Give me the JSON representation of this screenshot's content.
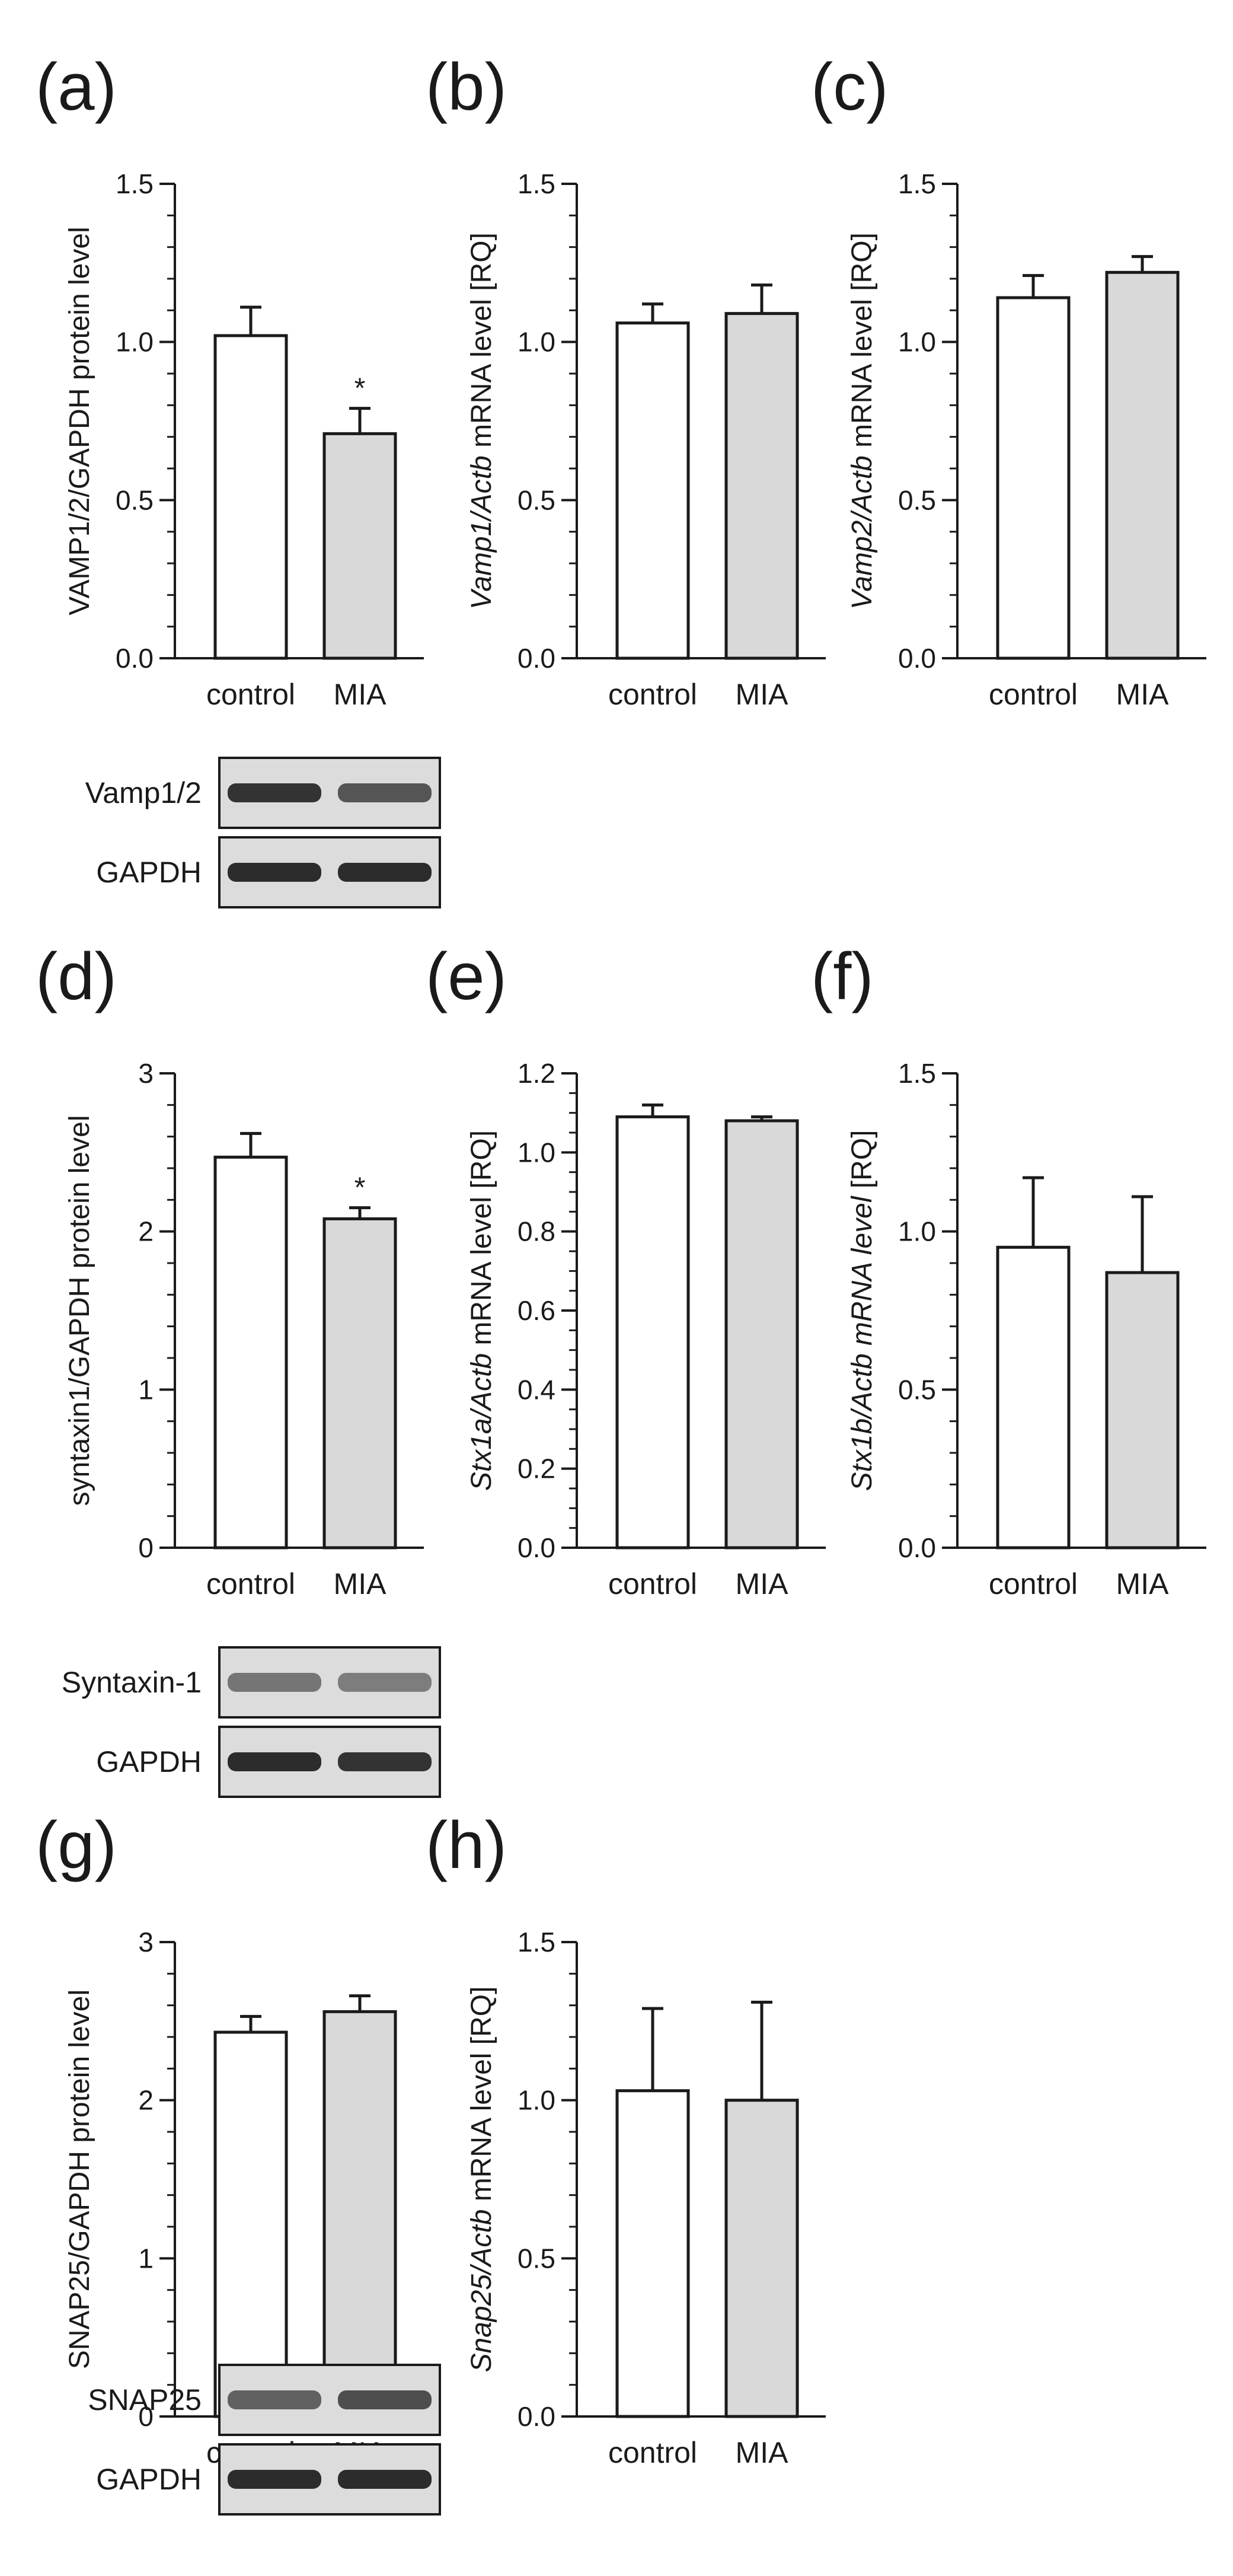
{
  "colors": {
    "control_fill": "#ffffff",
    "mia_fill": "#d9d9d9",
    "ink": "#1a1a1a",
    "blot_bg": "#dcdcdc"
  },
  "chart_data": [
    {
      "panel": "(a)",
      "type": "bar",
      "categories": [
        "control",
        "MIA"
      ],
      "values": [
        1.02,
        0.71
      ],
      "errors": [
        0.09,
        0.08
      ],
      "ylabel_parts": [
        {
          "t": "VAMP1/2/GAPDH protein level",
          "i": false
        }
      ],
      "ylim": [
        0,
        1.5
      ],
      "yticks": [
        0.0,
        0.5,
        1.0,
        1.5
      ],
      "tick_labels": [
        "0.0",
        "0.5",
        "1.0",
        "1.5"
      ],
      "minor_step": 0.1,
      "significance": [
        "",
        "*"
      ],
      "fills": [
        "#ffffff",
        "#d9d9d9"
      ]
    },
    {
      "panel": "(b)",
      "type": "bar",
      "categories": [
        "control",
        "MIA"
      ],
      "values": [
        1.06,
        1.09
      ],
      "errors": [
        0.06,
        0.09
      ],
      "ylabel_parts": [
        {
          "t": "Vamp1/Actb",
          "i": true
        },
        {
          "t": " mRNA level [RQ]",
          "i": false
        }
      ],
      "ylim": [
        0,
        1.5
      ],
      "yticks": [
        0.0,
        0.5,
        1.0,
        1.5
      ],
      "tick_labels": [
        "0.0",
        "0.5",
        "1.0",
        "1.5"
      ],
      "minor_step": 0.1,
      "significance": [
        "",
        ""
      ],
      "fills": [
        "#ffffff",
        "#d9d9d9"
      ]
    },
    {
      "panel": "(c)",
      "type": "bar",
      "categories": [
        "control",
        "MIA"
      ],
      "values": [
        1.14,
        1.22
      ],
      "errors": [
        0.07,
        0.05
      ],
      "ylabel_parts": [
        {
          "t": "Vamp2/Actb",
          "i": true
        },
        {
          "t": " mRNA level [RQ]",
          "i": false
        }
      ],
      "ylim": [
        0,
        1.5
      ],
      "yticks": [
        0.0,
        0.5,
        1.0,
        1.5
      ],
      "tick_labels": [
        "0.0",
        "0.5",
        "1.0",
        "1.5"
      ],
      "minor_step": 0.1,
      "significance": [
        "",
        ""
      ],
      "fills": [
        "#ffffff",
        "#d9d9d9"
      ]
    },
    {
      "panel": "(d)",
      "type": "bar",
      "categories": [
        "control",
        "MIA"
      ],
      "values": [
        2.47,
        2.08
      ],
      "errors": [
        0.15,
        0.07
      ],
      "ylabel_parts": [
        {
          "t": "syntaxin1/GAPDH protein level",
          "i": false
        }
      ],
      "ylim": [
        0,
        3
      ],
      "yticks": [
        0,
        1,
        2,
        3
      ],
      "tick_labels": [
        "0",
        "1",
        "2",
        "3"
      ],
      "minor_step": 0.2,
      "significance": [
        "",
        "*"
      ],
      "fills": [
        "#ffffff",
        "#d9d9d9"
      ]
    },
    {
      "panel": "(e)",
      "type": "bar",
      "categories": [
        "control",
        "MIA"
      ],
      "values": [
        1.09,
        1.08
      ],
      "errors": [
        0.03,
        0.01
      ],
      "ylabel_parts": [
        {
          "t": "Stx1a/Actb",
          "i": true
        },
        {
          "t": " mRNA level [RQ]",
          "i": false
        }
      ],
      "ylim": [
        0,
        1.2
      ],
      "yticks": [
        0.0,
        0.2,
        0.4,
        0.6,
        0.8,
        1.0,
        1.2
      ],
      "tick_labels": [
        "0.0",
        "0.2",
        "0.4",
        "0.6",
        "0.8",
        "1.0",
        "1.2"
      ],
      "minor_step": 0.05,
      "significance": [
        "",
        ""
      ],
      "fills": [
        "#ffffff",
        "#d9d9d9"
      ]
    },
    {
      "panel": "(f)",
      "type": "bar",
      "categories": [
        "control",
        "MIA"
      ],
      "values": [
        0.95,
        0.87
      ],
      "errors": [
        0.22,
        0.24
      ],
      "ylabel_parts": [
        {
          "t": "Stx1b/Actb mRNA level",
          "i": true
        },
        {
          "t": " [RQ]",
          "i": false
        }
      ],
      "ylim": [
        0,
        1.5
      ],
      "yticks": [
        0.0,
        0.5,
        1.0,
        1.5
      ],
      "tick_labels": [
        "0.0",
        "0.5",
        "1.0",
        "1.5"
      ],
      "minor_step": 0.1,
      "significance": [
        "",
        ""
      ],
      "fills": [
        "#ffffff",
        "#d9d9d9"
      ]
    },
    {
      "panel": "(g)",
      "type": "bar",
      "categories": [
        "control",
        "MIA"
      ],
      "values": [
        2.43,
        2.56
      ],
      "errors": [
        0.1,
        0.1
      ],
      "ylabel_parts": [
        {
          "t": "SNAP25/GAPDH protein level",
          "i": false
        }
      ],
      "ylim": [
        0,
        3
      ],
      "yticks": [
        0,
        1,
        2,
        3
      ],
      "tick_labels": [
        "0",
        "1",
        "2",
        "3"
      ],
      "minor_step": 0.2,
      "significance": [
        "",
        ""
      ],
      "fills": [
        "#ffffff",
        "#d9d9d9"
      ]
    },
    {
      "panel": "(h)",
      "type": "bar",
      "categories": [
        "control",
        "MIA"
      ],
      "values": [
        1.03,
        1.0
      ],
      "errors": [
        0.26,
        0.31
      ],
      "ylabel_parts": [
        {
          "t": "Snap25/Actb",
          "i": true
        },
        {
          "t": " mRNA level [RQ]",
          "i": false
        }
      ],
      "ylim": [
        0,
        1.5
      ],
      "yticks": [
        0.0,
        0.5,
        1.0,
        1.5
      ],
      "tick_labels": [
        "0.0",
        "0.5",
        "1.0",
        "1.5"
      ],
      "minor_step": 0.1,
      "significance": [
        "",
        ""
      ],
      "fills": [
        "#ffffff",
        "#d9d9d9"
      ]
    }
  ],
  "blots": [
    {
      "rows": [
        {
          "label": "Vamp1/2",
          "bands": [
            0.95,
            0.7
          ]
        },
        {
          "label": "GAPDH",
          "bands": [
            1.0,
            1.0
          ]
        }
      ]
    },
    {
      "rows": [
        {
          "label": "Syntaxin-1",
          "bands": [
            0.45,
            0.38
          ]
        },
        {
          "label": "GAPDH",
          "bands": [
            1.0,
            0.95
          ]
        }
      ]
    },
    {
      "rows": [
        {
          "label": "SNAP25",
          "bands": [
            0.6,
            0.75
          ]
        },
        {
          "label": "GAPDH",
          "bands": [
            1.0,
            1.0
          ]
        }
      ]
    }
  ]
}
